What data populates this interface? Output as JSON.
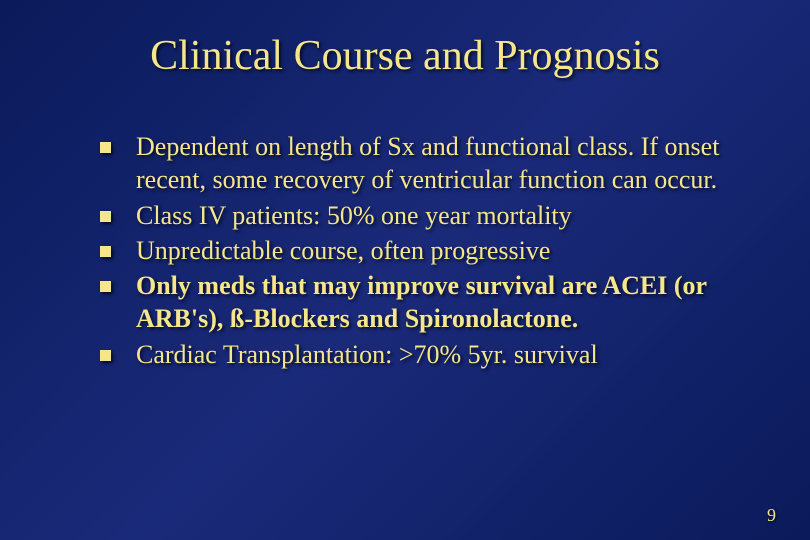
{
  "slide": {
    "title": "Clinical Course and Prognosis",
    "background_gradient": [
      "#0a1a5a",
      "#1a2a7a",
      "#0a1a5a"
    ],
    "text_color": "#f5e68c",
    "title_fontsize": 42,
    "body_fontsize": 26,
    "font_family": "Times New Roman",
    "bullet_marker": "square",
    "bullets": [
      {
        "text": "Dependent on length of Sx and functional class. If onset recent, some recovery of ventricular function can occur.",
        "bold": false
      },
      {
        "text": "Class IV patients: 50% one year mortality",
        "bold": false
      },
      {
        "text": "Unpredictable course, often progressive",
        "bold": false
      },
      {
        "text": "Only meds that may improve survival are ACEI (or ARB's), ß-Blockers and Spironolactone.",
        "bold": true
      },
      {
        "text": "Cardiac Transplantation: >70% 5yr. survival",
        "bold": false
      }
    ],
    "page_number": "9"
  }
}
